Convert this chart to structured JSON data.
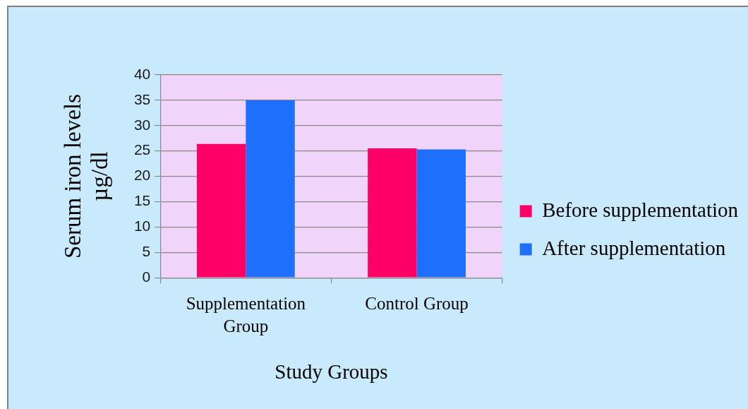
{
  "chart_data": {
    "type": "bar",
    "categories": [
      "Supplementation Group",
      "Control Group"
    ],
    "series": [
      {
        "name": "Before supplementation",
        "color": "#ff0066",
        "values": [
          26.4,
          25.5
        ]
      },
      {
        "name": "After supplementation",
        "color": "#1e70fc",
        "values": [
          35,
          25.3
        ]
      }
    ],
    "xlabel": "Study Groups",
    "ylabel": "Serum iron levels µg/dl",
    "ylim": [
      0,
      40
    ],
    "yticks": [
      0,
      5,
      10,
      15,
      20,
      25,
      30,
      35,
      40
    ],
    "grid": "y",
    "legend": "right"
  }
}
